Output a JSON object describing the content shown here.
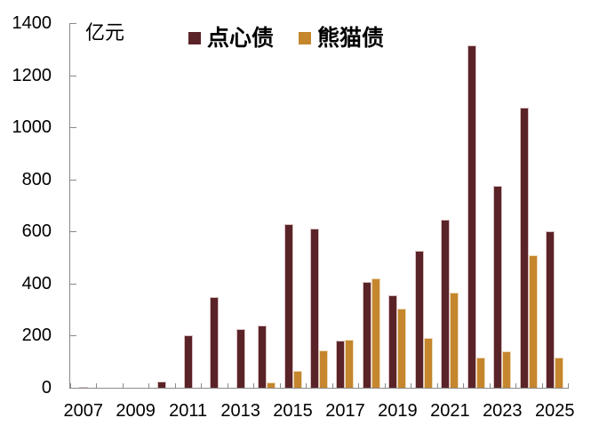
{
  "colors": {
    "axis": "#898989",
    "text": "#000000",
    "background": "#ffffff",
    "series_dianxin": "#5a2328",
    "series_panda": "#c5862e"
  },
  "chart_data": {
    "type": "bar",
    "title": "",
    "ylabel": "亿元",
    "xlabel": "",
    "ylim": [
      0,
      1400
    ],
    "yticks": [
      0,
      200,
      400,
      600,
      800,
      1000,
      1200,
      1400
    ],
    "grid": false,
    "legend_position": "top-center",
    "categories": [
      "2007",
      "2008",
      "2009",
      "2010",
      "2011",
      "2012",
      "2013",
      "2014",
      "2015",
      "2016",
      "2017",
      "2018",
      "2019",
      "2020",
      "2021",
      "2022",
      "2023",
      "2024",
      "2025"
    ],
    "xtick_labels": [
      "2007",
      "2009",
      "2011",
      "2013",
      "2015",
      "2017",
      "2019",
      "2021",
      "2023",
      "2025"
    ],
    "series": [
      {
        "name": "点心债",
        "color": "#5a2328",
        "values": [
          4,
          0,
          0,
          25,
          200,
          350,
          225,
          240,
          630,
          610,
          180,
          405,
          355,
          525,
          645,
          1315,
          775,
          1075,
          600
        ]
      },
      {
        "name": "熊猫债",
        "color": "#c5862e",
        "values": [
          0,
          0,
          0,
          0,
          0,
          0,
          0,
          20,
          65,
          145,
          185,
          420,
          305,
          190,
          365,
          115,
          140,
          510,
          115
        ]
      }
    ]
  }
}
